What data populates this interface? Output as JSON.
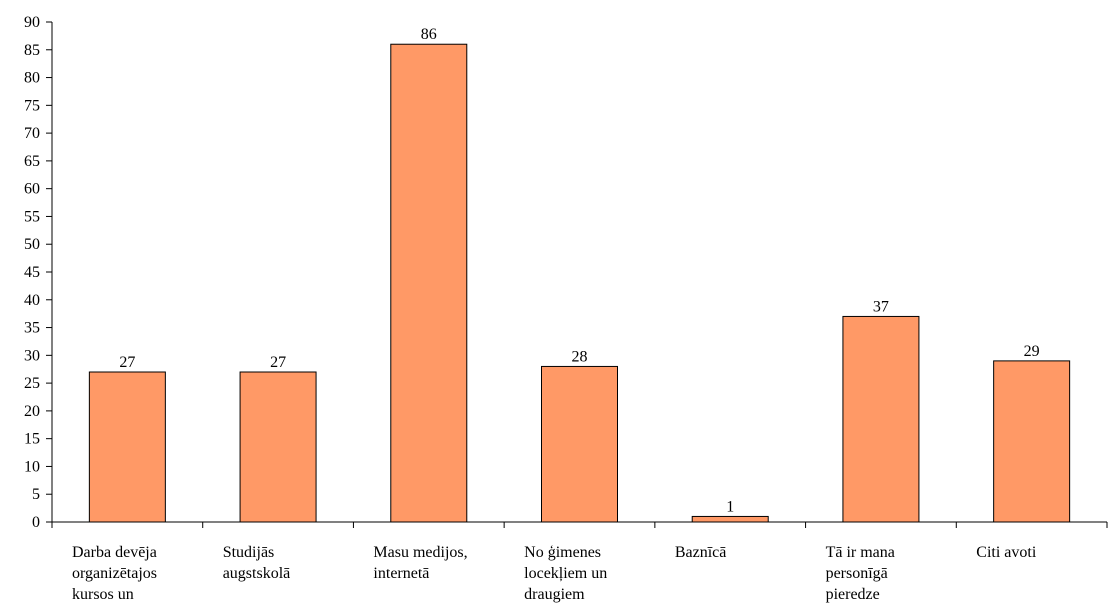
{
  "chart_data": {
    "type": "bar",
    "title": "",
    "xlabel": "",
    "ylabel": "",
    "ylim": [
      0,
      90
    ],
    "y_ticks": [
      0,
      5,
      10,
      15,
      20,
      25,
      30,
      35,
      40,
      45,
      50,
      55,
      60,
      65,
      70,
      75,
      80,
      85,
      90
    ],
    "grid": false,
    "legend": "none",
    "categories": [
      [
        "Darba devēja",
        "organizētajos",
        "kursos un"
      ],
      [
        "Studijās",
        "augstskolā"
      ],
      [
        "Masu medijos,",
        "internetā"
      ],
      [
        "No ģimenes",
        "locekļiem un",
        "draugiem"
      ],
      [
        "Baznīcā"
      ],
      [
        "Tā ir mana",
        "personīgā",
        "pieredze"
      ],
      [
        "Citi avoti"
      ]
    ],
    "values": [
      27,
      27,
      86,
      28,
      1,
      37,
      29
    ],
    "colors": {
      "bar_fill": "#FF9966",
      "bar_stroke": "#000000",
      "axis": "#000000"
    }
  }
}
